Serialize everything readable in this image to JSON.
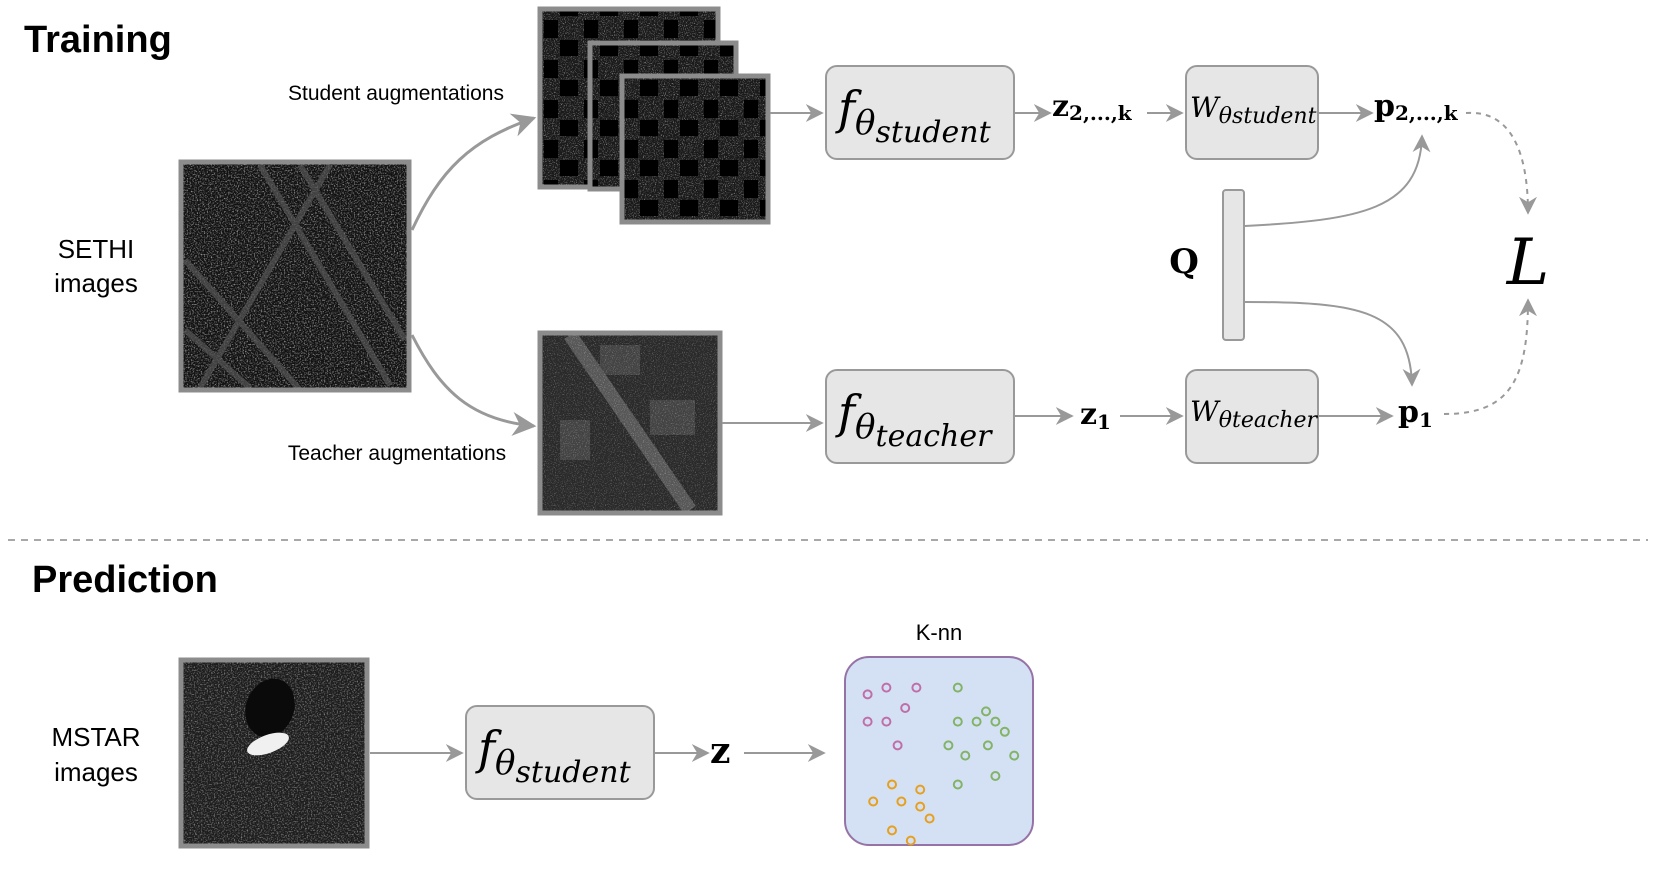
{
  "sections": {
    "training": "Training",
    "prediction": "Prediction"
  },
  "inputs": {
    "sethi": [
      "SETHI",
      "images"
    ],
    "mstar": [
      "MSTAR",
      "images"
    ]
  },
  "augmentations": {
    "student": "Student augmentations",
    "teacher": "Teacher augmentations"
  },
  "encoders": {
    "f": "f",
    "student_sub": "θ",
    "student_subsub": "student",
    "teacher_sub": "θ",
    "teacher_subsub": "teacher"
  },
  "heads": {
    "W": "W",
    "student_sub": "θstudent",
    "teacher_sub": "θteacher"
  },
  "vectors": {
    "z_student": "z",
    "z_student_sub": "2,...,k",
    "z_teacher": "z",
    "z_teacher_sub": "1",
    "p_student": "p",
    "p_student_sub": "2,...,k",
    "p_teacher": "p",
    "p_teacher_sub": "1",
    "z_pred": "z"
  },
  "queue": "Q",
  "loss": "L",
  "knn": {
    "title": "K-nn",
    "fill": "#d4e1f5",
    "stroke": "#9673a6",
    "clusters": [
      {
        "color": "#c06ea8",
        "points": [
          [
            0.12,
            0.22
          ],
          [
            0.22,
            0.18
          ],
          [
            0.38,
            0.18
          ],
          [
            0.32,
            0.3
          ],
          [
            0.12,
            0.38
          ],
          [
            0.22,
            0.38
          ],
          [
            0.28,
            0.52
          ]
        ]
      },
      {
        "color": "#82b366",
        "points": [
          [
            0.6,
            0.18
          ],
          [
            0.6,
            0.38
          ],
          [
            0.7,
            0.38
          ],
          [
            0.75,
            0.32
          ],
          [
            0.8,
            0.38
          ],
          [
            0.85,
            0.44
          ],
          [
            0.55,
            0.52
          ],
          [
            0.64,
            0.58
          ],
          [
            0.76,
            0.52
          ],
          [
            0.9,
            0.58
          ],
          [
            0.8,
            0.7
          ],
          [
            0.6,
            0.75
          ]
        ]
      },
      {
        "color": "#e6a020",
        "points": [
          [
            0.25,
            0.75
          ],
          [
            0.4,
            0.78
          ],
          [
            0.15,
            0.85
          ],
          [
            0.3,
            0.85
          ],
          [
            0.4,
            0.88
          ],
          [
            0.45,
            0.95
          ],
          [
            0.25,
            1.02
          ],
          [
            0.35,
            1.08
          ]
        ]
      }
    ]
  },
  "colors": {
    "arrow": "#999999",
    "box_fill": "#e6e6e6",
    "box_stroke": "#999999",
    "image_border": "#8c8c8c"
  }
}
